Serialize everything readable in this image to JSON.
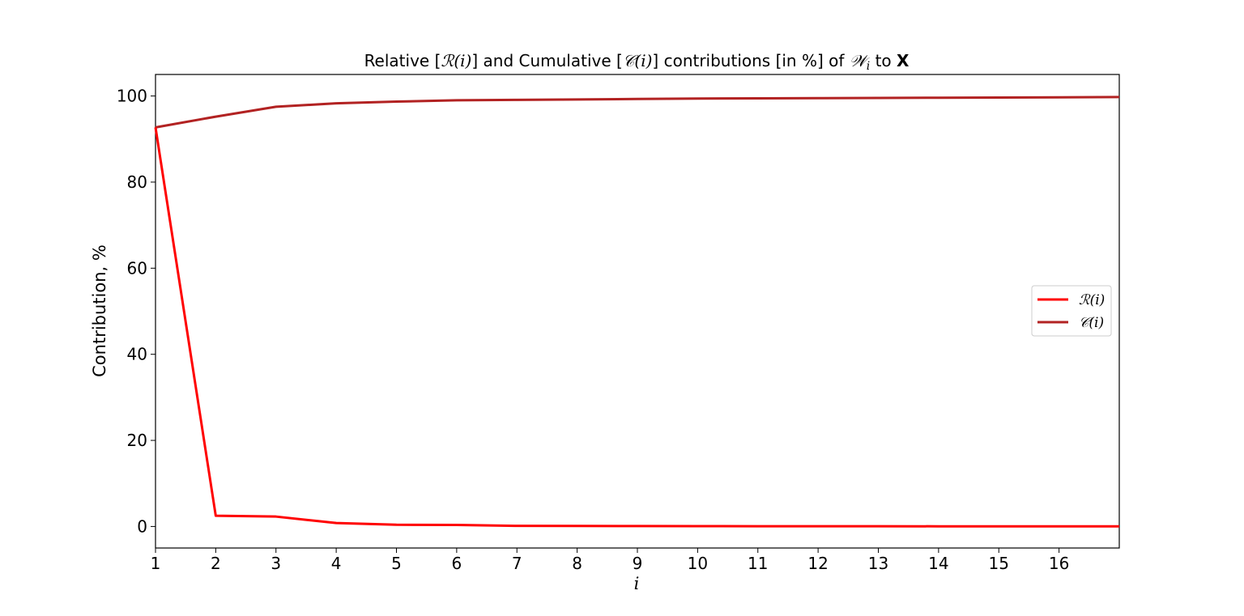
{
  "chart_data": {
    "type": "line",
    "title_parts": [
      {
        "text": "Relative [",
        "style": "plain"
      },
      {
        "text": "ℛ(i)",
        "style": "math"
      },
      {
        "text": "] and Cumulative [",
        "style": "plain"
      },
      {
        "text": "𝒞(i)",
        "style": "math"
      },
      {
        "text": "] contributions [in %] of ",
        "style": "plain"
      },
      {
        "text": "𝒲",
        "style": "math"
      },
      {
        "text": "i",
        "style": "math-sub"
      },
      {
        "text": " to ",
        "style": "plain"
      },
      {
        "text": "X",
        "style": "bold"
      }
    ],
    "xlabel": "i",
    "ylabel": "Contribution, %",
    "xlim": [
      1,
      17
    ],
    "ylim": [
      -5,
      105
    ],
    "xticks": [
      1,
      2,
      3,
      4,
      5,
      6,
      7,
      8,
      9,
      10,
      11,
      12,
      13,
      14,
      15,
      16
    ],
    "yticks": [
      0,
      20,
      40,
      60,
      80,
      100
    ],
    "grid": false,
    "legend_position": "center-right",
    "x": [
      1,
      2,
      3,
      4,
      5,
      6,
      7,
      8,
      9,
      10,
      11,
      12,
      13,
      14,
      15,
      16,
      17
    ],
    "series": [
      {
        "name": "ℛ(i)",
        "color": "#ff0000",
        "values": [
          92.7,
          2.5,
          2.3,
          0.8,
          0.4,
          0.35,
          0.15,
          0.12,
          0.1,
          0.08,
          0.06,
          0.05,
          0.05,
          0.04,
          0.04,
          0.04,
          0.04
        ]
      },
      {
        "name": "𝒞(i)",
        "color": "#b22222",
        "values": [
          92.7,
          95.2,
          97.5,
          98.3,
          98.7,
          99.0,
          99.1,
          99.2,
          99.3,
          99.4,
          99.45,
          99.5,
          99.55,
          99.6,
          99.65,
          99.7,
          99.75
        ]
      }
    ]
  }
}
